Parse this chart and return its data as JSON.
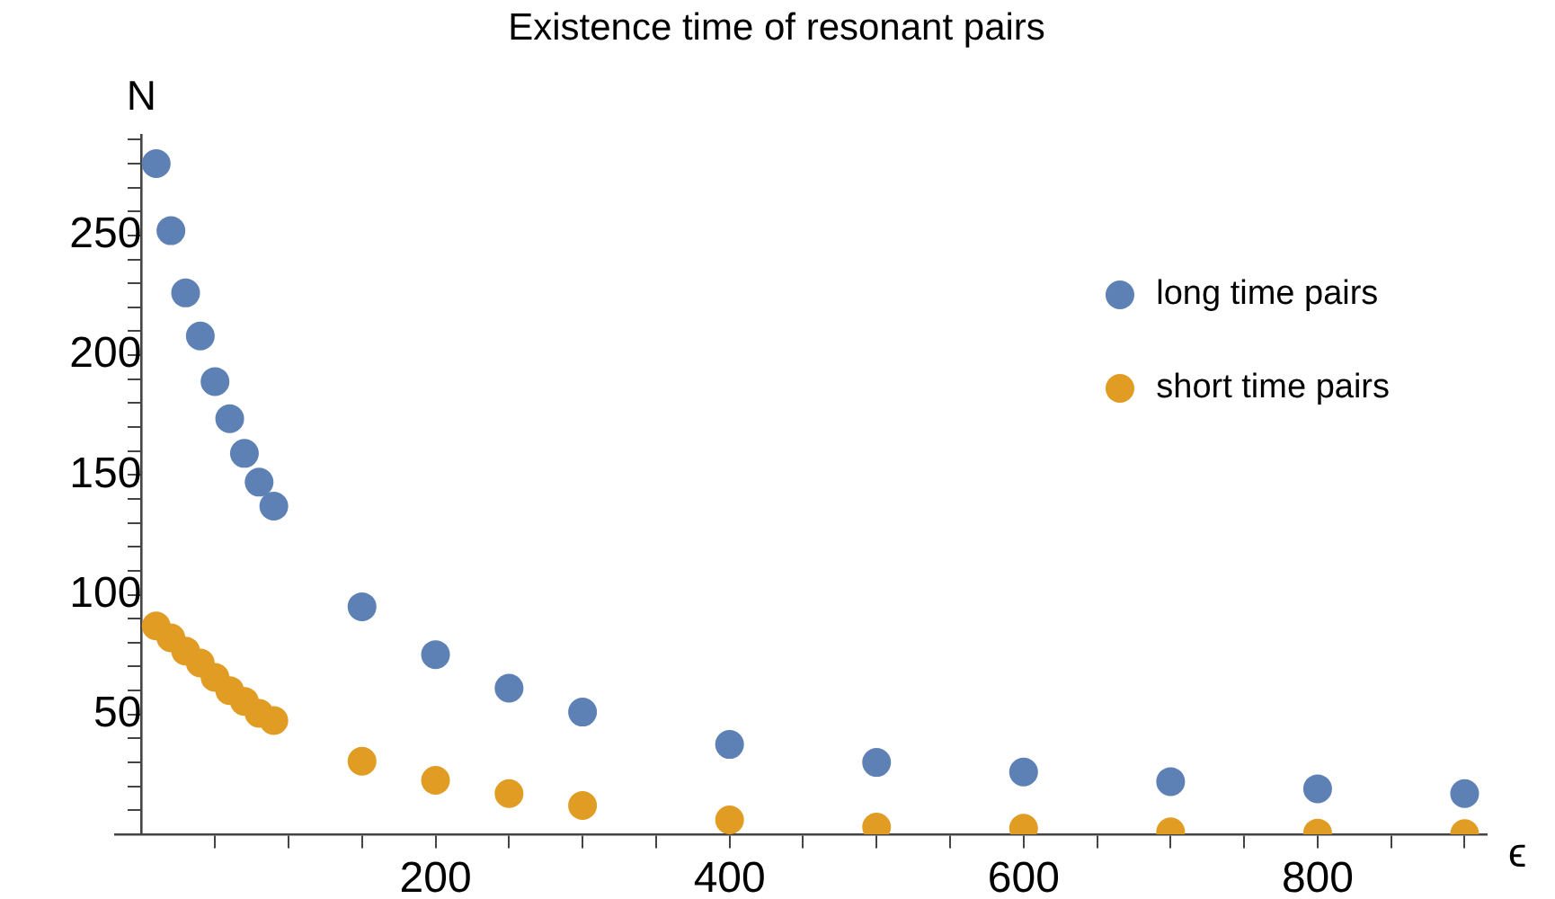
{
  "chart_data": {
    "type": "scatter",
    "title": "Existence time of resonant pairs",
    "xlabel": "ϵ",
    "ylabel": "N",
    "xlim": [
      -18,
      915
    ],
    "ylim": [
      0,
      292
    ],
    "xticks": [
      {
        "value": 50,
        "label": null
      },
      {
        "value": 100,
        "label": null
      },
      {
        "value": 150,
        "label": null
      },
      200,
      {
        "value": 250,
        "label": null
      },
      {
        "value": 300,
        "label": null
      },
      {
        "value": 350,
        "label": null
      },
      400,
      {
        "value": 450,
        "label": null
      },
      {
        "value": 500,
        "label": null
      },
      {
        "value": 550,
        "label": null
      },
      600,
      {
        "value": 650,
        "label": null
      },
      {
        "value": 700,
        "label": null
      },
      {
        "value": 750,
        "label": null
      },
      800,
      {
        "value": 850,
        "label": null
      },
      {
        "value": 900,
        "label": null
      }
    ],
    "yticks": [
      {
        "value": 10,
        "label": null
      },
      {
        "value": 20,
        "label": null
      },
      {
        "value": 30,
        "label": null
      },
      {
        "value": 40,
        "label": null
      },
      50,
      {
        "value": 60,
        "label": null
      },
      {
        "value": 70,
        "label": null
      },
      {
        "value": 80,
        "label": null
      },
      {
        "value": 90,
        "label": null
      },
      100,
      {
        "value": 110,
        "label": null
      },
      {
        "value": 120,
        "label": null
      },
      {
        "value": 130,
        "label": null
      },
      {
        "value": 140,
        "label": null
      },
      150,
      {
        "value": 160,
        "label": null
      },
      {
        "value": 170,
        "label": null
      },
      {
        "value": 180,
        "label": null
      },
      {
        "value": 190,
        "label": null
      },
      200,
      {
        "value": 210,
        "label": null
      },
      {
        "value": 220,
        "label": null
      },
      {
        "value": 230,
        "label": null
      },
      {
        "value": 240,
        "label": null
      },
      250,
      {
        "value": 260,
        "label": null
      },
      {
        "value": 270,
        "label": null
      },
      {
        "value": 280,
        "label": null
      },
      {
        "value": 290,
        "label": null
      }
    ],
    "x": [
      10,
      20,
      30,
      40,
      50,
      60,
      70,
      80,
      90,
      150,
      200,
      250,
      300,
      400,
      500,
      600,
      700,
      800,
      900
    ],
    "series": [
      {
        "name": "long time pairs",
        "color": "#5e81b5",
        "values": [
          280,
          252,
          226,
          208,
          189,
          173.5,
          159,
          147,
          137,
          95,
          75,
          61,
          51,
          37.5,
          30,
          26,
          22,
          19,
          17
        ]
      },
      {
        "name": "short time pairs",
        "color": "#e19c24",
        "values": [
          87,
          82,
          76.5,
          71.5,
          65.5,
          60,
          55.5,
          50.5,
          47.5,
          30.5,
          22.5,
          17,
          12,
          6,
          3,
          2.5,
          1,
          0.5,
          0.3
        ]
      }
    ],
    "marker": "circle",
    "grid": false,
    "legend": "top right"
  }
}
